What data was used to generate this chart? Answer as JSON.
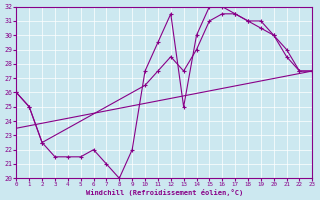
{
  "xlabel": "Windchill (Refroidissement éolien,°C)",
  "xlim": [
    0,
    23
  ],
  "ylim": [
    20,
    32
  ],
  "yticks": [
    20,
    21,
    22,
    23,
    24,
    25,
    26,
    27,
    28,
    29,
    30,
    31,
    32
  ],
  "xticks": [
    0,
    1,
    2,
    3,
    4,
    5,
    6,
    7,
    8,
    9,
    10,
    11,
    12,
    13,
    14,
    15,
    16,
    17,
    18,
    19,
    20,
    21,
    22,
    23
  ],
  "bg_color": "#cce8f0",
  "line_color": "#880088",
  "line1_x": [
    0,
    1,
    2,
    3,
    4,
    5,
    6,
    7,
    8,
    9,
    10,
    11,
    12,
    13,
    14,
    15,
    16,
    17,
    18,
    19,
    20,
    21,
    22,
    23
  ],
  "line1_y": [
    26.0,
    25.0,
    22.5,
    21.5,
    21.5,
    21.5,
    22.0,
    21.0,
    20.0,
    22.0,
    27.5,
    29.5,
    31.5,
    25.0,
    30.0,
    32.0,
    32.0,
    31.5,
    31.0,
    31.0,
    30.0,
    29.0,
    27.5,
    27.5
  ],
  "line2_x": [
    0,
    1,
    2,
    10,
    11,
    12,
    13,
    14,
    15,
    16,
    17,
    18,
    19,
    20,
    21,
    22,
    23
  ],
  "line2_y": [
    26.0,
    25.0,
    22.5,
    26.5,
    27.5,
    28.5,
    27.5,
    29.0,
    31.0,
    31.5,
    31.5,
    31.0,
    30.5,
    30.0,
    28.5,
    27.5,
    27.5
  ],
  "line3_x": [
    0,
    23
  ],
  "line3_y": [
    23.5,
    27.5
  ]
}
